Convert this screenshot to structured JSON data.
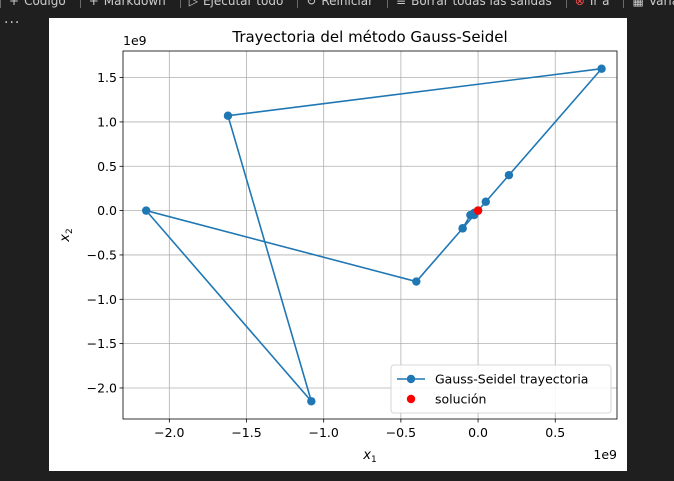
{
  "toolbar": {
    "items": [
      {
        "label": "Código",
        "icon": "plus-icon"
      },
      {
        "label": "Markdown",
        "icon": "plus-icon"
      },
      {
        "label": "Ejecutar todo",
        "icon": "play-icon"
      },
      {
        "label": "Reiniciar",
        "icon": "restart-icon"
      },
      {
        "label": "Borrar todas las salidas",
        "icon": "clear-outputs-icon"
      },
      {
        "label": "Ir a",
        "icon": "goto-icon"
      },
      {
        "label": "Variables",
        "icon": "variables-icon"
      }
    ]
  },
  "more_label": "...",
  "chart_data": {
    "type": "line",
    "title": "Trayectoria del método Gauss-Seidel",
    "xlabel": "x",
    "xlabel_sub": "1",
    "ylabel": "x",
    "ylabel_sub": "2",
    "x_offset_label": "1e9",
    "y_offset_label": "1e9",
    "xlim": [
      -2.3,
      0.9
    ],
    "ylim": [
      -2.35,
      1.8
    ],
    "xticks": [
      -2.0,
      -1.5,
      -1.0,
      -0.5,
      0.0,
      0.5
    ],
    "xtick_labels": [
      "−2.0",
      "−1.5",
      "−1.0",
      "−0.5",
      "0.0",
      "0.5"
    ],
    "yticks": [
      -2.0,
      -1.5,
      -1.0,
      -0.5,
      0.0,
      0.5,
      1.0,
      1.5
    ],
    "ytick_labels": [
      "−2.0",
      "−1.5",
      "−1.0",
      "−0.5",
      "0.0",
      "0.5",
      "1.0",
      "1.5"
    ],
    "grid": true,
    "legend_position": "lower-right",
    "series": [
      {
        "name": "Gauss-Seidel trayectoria",
        "color": "#1f77b4",
        "marker": "circle",
        "x": [
          0.0,
          0.0,
          -0.025,
          -0.05,
          -0.1,
          0.05,
          0.2,
          0.8,
          -1.62,
          -1.08,
          -2.15,
          -0.4,
          -0.1,
          -0.025
        ],
        "y": [
          0.0,
          0.0,
          -0.025,
          -0.05,
          -0.2,
          0.1,
          0.4,
          1.6,
          1.07,
          -2.15,
          0.0,
          -0.8,
          -0.2,
          -0.05
        ]
      },
      {
        "name": "solución",
        "color": "#ff0000",
        "marker": "circle",
        "x": [
          0.0
        ],
        "y": [
          0.0
        ]
      }
    ]
  }
}
